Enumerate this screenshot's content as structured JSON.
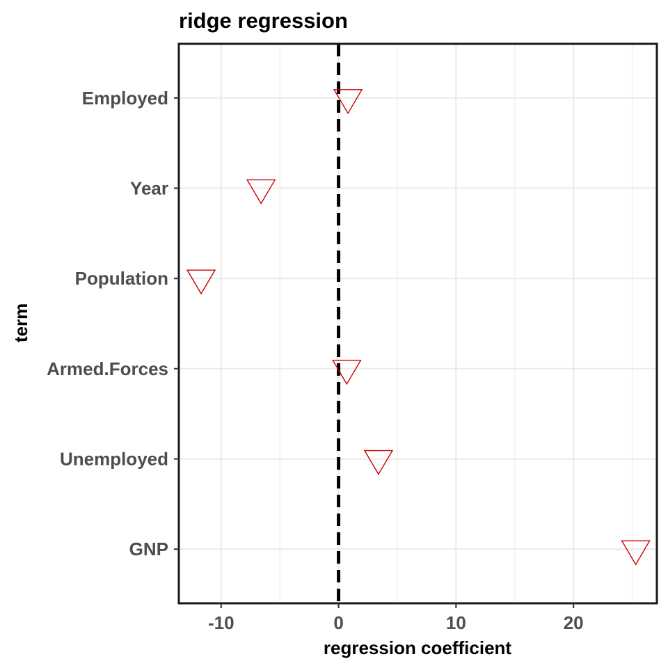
{
  "chart_data": {
    "type": "scatter",
    "title": "ridge regression",
    "xlabel": "regression coefficient",
    "ylabel": "term",
    "xlim": [
      -13.6,
      27.1
    ],
    "x_ticks": [
      -10,
      0,
      10,
      20
    ],
    "x_tick_labels": [
      "-10",
      "0",
      "10",
      "20"
    ],
    "categories": [
      "GNP",
      "Unemployed",
      "Armed.Forces",
      "Population",
      "Year",
      "Employed"
    ],
    "points": [
      {
        "term": "Employed",
        "value": 0.8
      },
      {
        "term": "Year",
        "value": -6.6
      },
      {
        "term": "Population",
        "value": -11.7
      },
      {
        "term": "Armed.Forces",
        "value": 0.7
      },
      {
        "term": "Unemployed",
        "value": 3.4
      },
      {
        "term": "GNP",
        "value": 25.3
      }
    ],
    "reference_line": {
      "x": 0,
      "style": "dashed",
      "color": "#000000"
    },
    "marker": {
      "shape": "downward-triangle",
      "color": "#cc0000",
      "filled": false
    },
    "grid": true,
    "legend": false
  }
}
